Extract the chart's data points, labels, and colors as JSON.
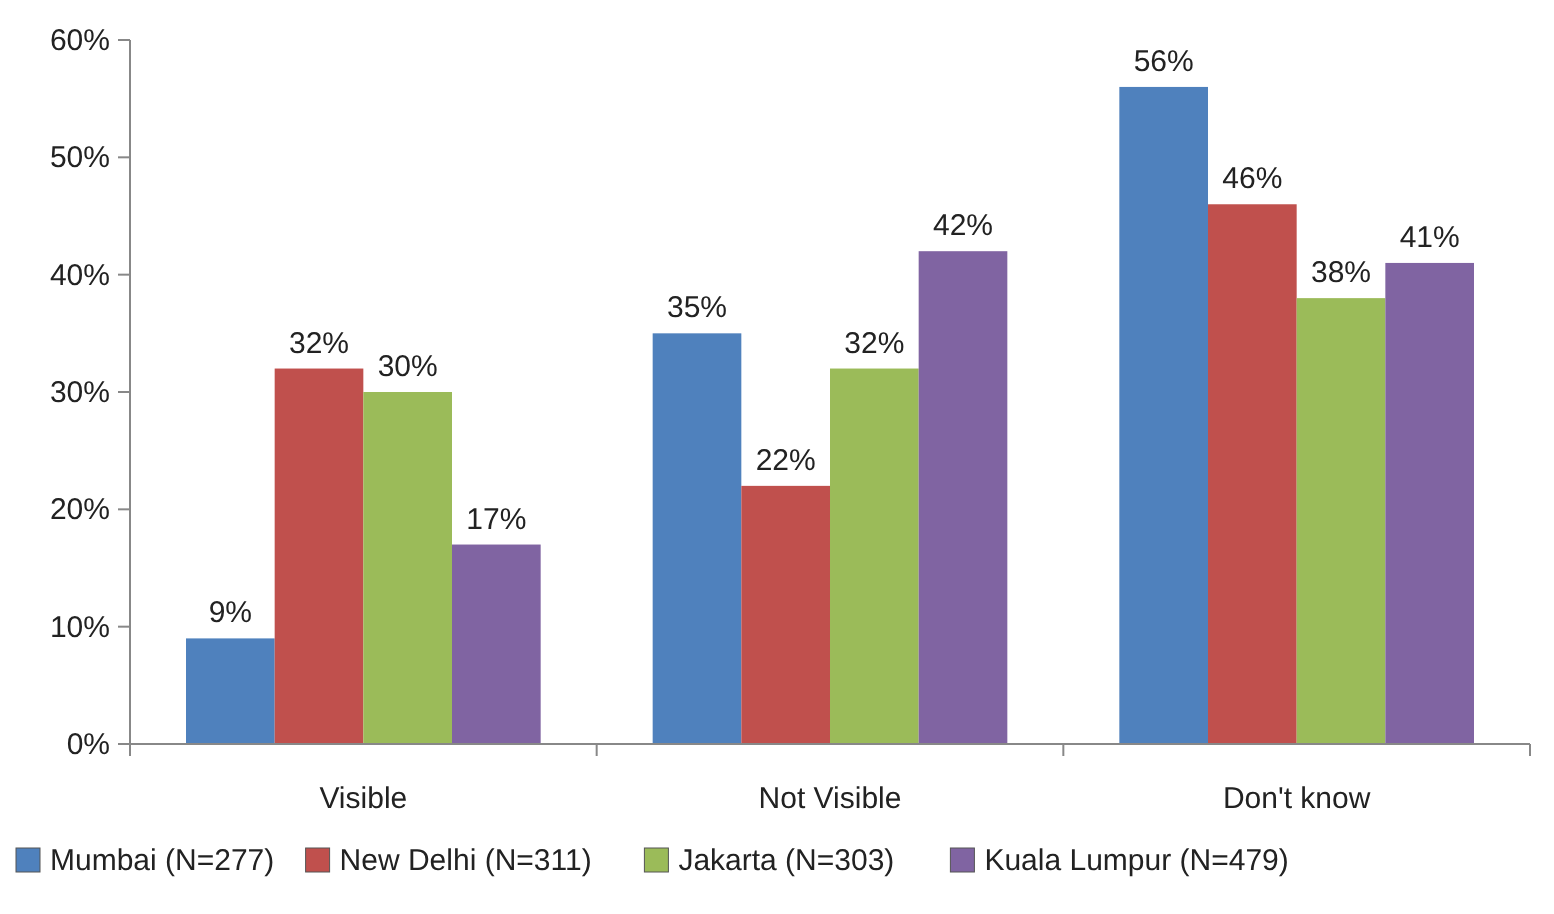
{
  "chart_data": {
    "type": "bar",
    "categories": [
      "Visible",
      "Not Visible",
      "Don't know"
    ],
    "series": [
      {
        "name": "Mumbai (N=277)",
        "color": "#4f81bd",
        "values": [
          9,
          35,
          56
        ],
        "value_labels": [
          "9%",
          "35%",
          "56%"
        ]
      },
      {
        "name": "New Delhi (N=311)",
        "color": "#c0504d",
        "values": [
          32,
          22,
          46
        ],
        "value_labels": [
          "32%",
          "22%",
          "46%"
        ]
      },
      {
        "name": "Jakarta (N=303)",
        "color": "#9bbb59",
        "values": [
          30,
          32,
          38
        ],
        "value_labels": [
          "30%",
          "32%",
          "38%"
        ]
      },
      {
        "name": "Kuala Lumpur (N=479)",
        "color": "#8064a2",
        "values": [
          17,
          42,
          41
        ],
        "value_labels": [
          "17%",
          "42%",
          "41%"
        ]
      }
    ],
    "ylim": [
      0,
      60
    ],
    "yticks": [
      {
        "value": 0,
        "label": "0%"
      },
      {
        "value": 10,
        "label": "10%"
      },
      {
        "value": 20,
        "label": "20%"
      },
      {
        "value": 30,
        "label": "30%"
      },
      {
        "value": 40,
        "label": "40%"
      },
      {
        "value": 50,
        "label": "50%"
      },
      {
        "value": 60,
        "label": "60%"
      }
    ],
    "grid": false,
    "legend": "bottom"
  }
}
